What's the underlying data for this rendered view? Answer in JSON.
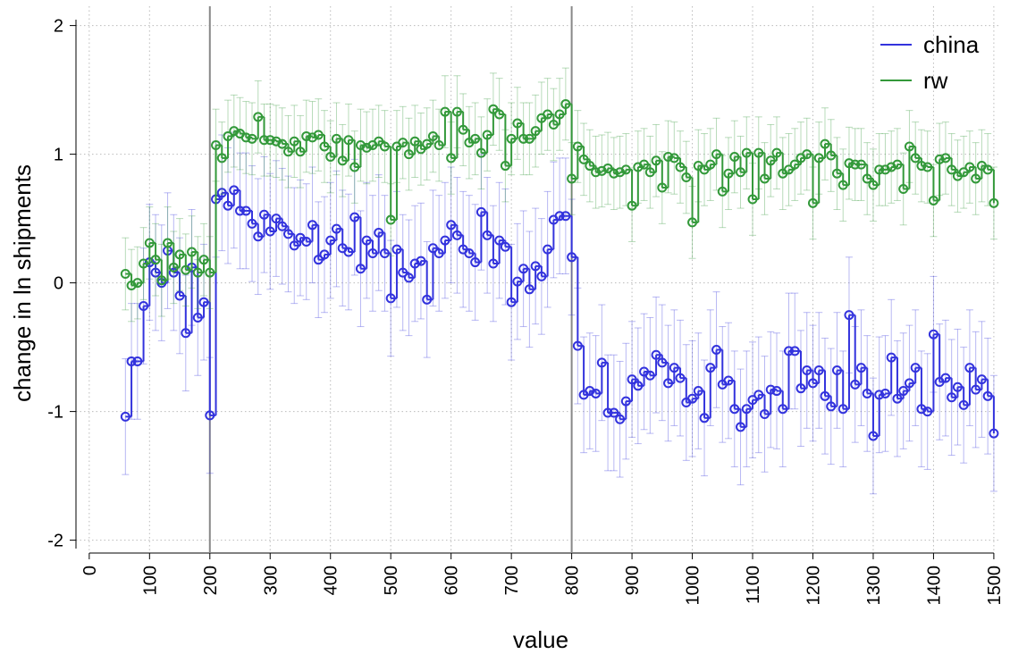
{
  "chart_data": {
    "type": "step-errorbar",
    "x_label": "value",
    "y_label": "change in ln shipments",
    "xlim": [
      -22,
      1512
    ],
    "ylim": [
      -2.1,
      2.15
    ],
    "xticks": [
      0,
      100,
      200,
      300,
      400,
      500,
      600,
      700,
      800,
      900,
      1000,
      1100,
      1200,
      1300,
      1400,
      1500
    ],
    "yticks": [
      -2,
      -1,
      0,
      1,
      2
    ],
    "grid": true,
    "legend": "top-right",
    "vlines": [
      200,
      800
    ],
    "x": [
      60,
      70,
      80,
      90,
      100,
      110,
      120,
      130,
      140,
      150,
      160,
      170,
      180,
      190,
      200,
      210,
      220,
      230,
      240,
      250,
      260,
      270,
      280,
      290,
      300,
      310,
      320,
      330,
      340,
      350,
      360,
      370,
      380,
      390,
      400,
      410,
      420,
      430,
      440,
      450,
      460,
      470,
      480,
      490,
      500,
      510,
      520,
      530,
      540,
      550,
      560,
      570,
      580,
      590,
      600,
      610,
      620,
      630,
      640,
      650,
      660,
      670,
      680,
      690,
      700,
      710,
      720,
      730,
      740,
      750,
      760,
      770,
      780,
      790,
      800,
      810,
      820,
      830,
      840,
      850,
      860,
      870,
      880,
      890,
      900,
      910,
      920,
      930,
      940,
      950,
      960,
      970,
      980,
      990,
      1000,
      1010,
      1020,
      1030,
      1040,
      1050,
      1060,
      1070,
      1080,
      1090,
      1100,
      1110,
      1120,
      1130,
      1140,
      1150,
      1160,
      1170,
      1180,
      1190,
      1200,
      1210,
      1220,
      1230,
      1240,
      1250,
      1260,
      1270,
      1280,
      1290,
      1300,
      1310,
      1320,
      1330,
      1340,
      1350,
      1360,
      1370,
      1380,
      1390,
      1400,
      1410,
      1420,
      1430,
      1440,
      1450,
      1460,
      1470,
      1480,
      1490,
      1500
    ],
    "series": [
      {
        "name": "china",
        "color": "#3333dd",
        "error": 0.45,
        "values": [
          -1.04,
          -0.61,
          -0.61,
          -0.18,
          0.16,
          0.08,
          0.0,
          0.25,
          0.08,
          -0.1,
          -0.39,
          0.12,
          -0.27,
          -0.15,
          -1.03,
          0.65,
          0.7,
          0.6,
          0.72,
          0.56,
          0.56,
          0.46,
          0.36,
          0.53,
          0.4,
          0.5,
          0.44,
          0.38,
          0.29,
          0.35,
          0.32,
          0.45,
          0.18,
          0.22,
          0.33,
          0.42,
          0.27,
          0.24,
          0.51,
          0.11,
          0.33,
          0.23,
          0.39,
          0.23,
          -0.12,
          0.26,
          0.08,
          0.04,
          0.15,
          0.17,
          -0.13,
          0.27,
          0.23,
          0.33,
          0.45,
          0.37,
          0.26,
          0.23,
          0.16,
          0.55,
          0.37,
          0.15,
          0.33,
          0.28,
          -0.15,
          0.01,
          0.11,
          -0.05,
          0.13,
          0.05,
          0.26,
          0.49,
          0.52,
          0.52,
          0.2,
          -0.49,
          -0.87,
          -0.84,
          -0.86,
          -0.62,
          -1.01,
          -1.01,
          -1.06,
          -0.92,
          -0.75,
          -0.8,
          -0.69,
          -0.72,
          -0.56,
          -0.62,
          -0.78,
          -0.66,
          -0.74,
          -0.93,
          -0.9,
          -0.84,
          -1.05,
          -0.66,
          -0.52,
          -0.79,
          -0.76,
          -0.98,
          -1.12,
          -0.98,
          -0.91,
          -0.87,
          -1.02,
          -0.83,
          -0.84,
          -0.98,
          -0.53,
          -0.53,
          -0.82,
          -0.68,
          -0.78,
          -0.68,
          -0.88,
          -0.96,
          -0.68,
          -0.98,
          -0.25,
          -0.79,
          -0.66,
          -0.86,
          -1.19,
          -0.87,
          -0.86,
          -0.58,
          -0.9,
          -0.84,
          -0.78,
          -0.66,
          -0.98,
          -1.0,
          -0.4,
          -0.77,
          -0.74,
          -0.89,
          -0.81,
          -0.95,
          -0.66,
          -0.83,
          -0.75,
          -0.88,
          -1.17
        ]
      },
      {
        "name": "rw",
        "color": "#33993a",
        "error": 0.28,
        "values": [
          0.07,
          -0.02,
          0.0,
          0.15,
          0.31,
          0.18,
          0.02,
          0.31,
          0.12,
          0.22,
          0.1,
          0.24,
          0.08,
          0.18,
          0.08,
          1.07,
          0.97,
          1.14,
          1.18,
          1.16,
          1.13,
          1.12,
          1.29,
          1.11,
          1.11,
          1.1,
          1.08,
          1.02,
          1.1,
          1.02,
          1.14,
          1.13,
          1.15,
          1.06,
          0.98,
          1.12,
          0.95,
          1.11,
          0.9,
          1.07,
          1.05,
          1.07,
          1.1,
          1.06,
          0.49,
          1.06,
          1.09,
          1.0,
          1.1,
          1.04,
          1.08,
          1.14,
          1.07,
          1.33,
          0.97,
          1.33,
          1.19,
          1.09,
          1.12,
          1.01,
          1.15,
          1.35,
          1.31,
          0.91,
          1.12,
          1.24,
          1.12,
          1.12,
          1.18,
          1.28,
          1.31,
          1.23,
          1.31,
          1.39,
          0.81,
          1.06,
          0.96,
          0.91,
          0.86,
          0.87,
          0.89,
          0.85,
          0.86,
          0.88,
          0.6,
          0.9,
          0.92,
          0.86,
          0.95,
          0.74,
          0.98,
          0.97,
          0.9,
          0.82,
          0.47,
          0.91,
          0.88,
          0.92,
          1.0,
          0.71,
          0.85,
          0.98,
          0.86,
          1.01,
          0.65,
          1.01,
          0.81,
          0.95,
          1.01,
          0.85,
          0.88,
          0.92,
          0.97,
          1.0,
          0.62,
          0.97,
          1.08,
          0.99,
          0.85,
          0.76,
          0.93,
          0.92,
          0.92,
          0.81,
          0.76,
          0.88,
          0.88,
          0.9,
          0.92,
          0.73,
          1.06,
          0.97,
          0.91,
          0.9,
          0.64,
          0.96,
          0.97,
          0.88,
          0.83,
          0.86,
          0.9,
          0.81,
          0.91,
          0.88,
          0.62
        ]
      }
    ]
  }
}
